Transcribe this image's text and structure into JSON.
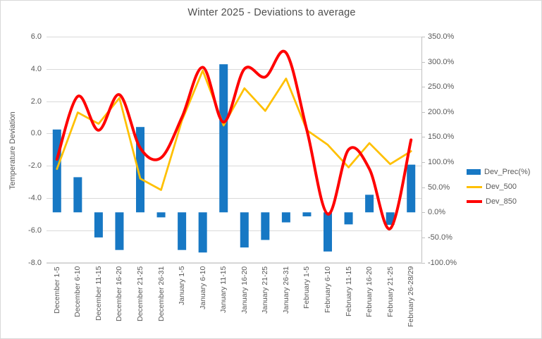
{
  "chart_data": {
    "type": "bar",
    "title": "Winter 2025 - Deviations to average",
    "categories": [
      "December 1-5",
      "December 6-10",
      "December 11-15",
      "December 16-20",
      "December 21-25",
      "December 26-31",
      "January 1-5",
      "January 6-10",
      "January 11-15",
      "January 16-20",
      "January 21-25",
      "January 26-31",
      "February 1-5",
      "February 6-10",
      "February 11-15",
      "February 16-20",
      "February 21-25",
      "February 26-28/29"
    ],
    "series": [
      {
        "name": "Dev_Prec(%)",
        "type": "bar",
        "axis": "right",
        "color": "#1778c4",
        "smooth": false,
        "values": [
          165,
          70,
          -50,
          -75,
          170,
          -10,
          -75,
          -80,
          295,
          -70,
          -55,
          -20,
          -8,
          -78,
          -24,
          35,
          -25,
          95
        ]
      },
      {
        "name": "Dev_500",
        "type": "line",
        "axis": "left",
        "color": "#ffc000",
        "smooth": false,
        "values": [
          -2.2,
          1.3,
          0.6,
          2.2,
          -2.8,
          -3.5,
          0.8,
          3.9,
          0.5,
          2.8,
          1.4,
          3.4,
          0.2,
          -0.7,
          -2.1,
          -0.6,
          -1.9,
          -1.1
        ]
      },
      {
        "name": "Dev_850",
        "type": "line",
        "axis": "left",
        "color": "#ff0000",
        "smooth": true,
        "values": [
          -1.6,
          2.3,
          0.2,
          2.4,
          -0.9,
          -1.5,
          1.0,
          4.1,
          0.7,
          4.0,
          3.5,
          5.0,
          0.2,
          -5.0,
          -1.0,
          -2.2,
          -5.9,
          -0.4
        ]
      }
    ],
    "left_axis": {
      "label": "Temperature Deviation",
      "min": -8.0,
      "max": 6.0,
      "step": 2.0,
      "tick_labels": [
        "6.0",
        "4.0",
        "2.0",
        "0.0",
        "-2.0",
        "-4.0",
        "-6.0",
        "-8.0"
      ]
    },
    "right_axis": {
      "min": -100,
      "max": 350,
      "step": 50,
      "format": "percent",
      "tick_labels": [
        "350.0%",
        "300.0%",
        "250.0%",
        "200.0%",
        "150.0%",
        "100.0%",
        "50.0%",
        "0.0%",
        "-50.0%",
        "-100.0%"
      ]
    },
    "grid": true,
    "legend_position": "right",
    "colors": {
      "gridline": "#d9d9d9",
      "axis_line": "#c0c0c0",
      "text": "#595959"
    }
  }
}
